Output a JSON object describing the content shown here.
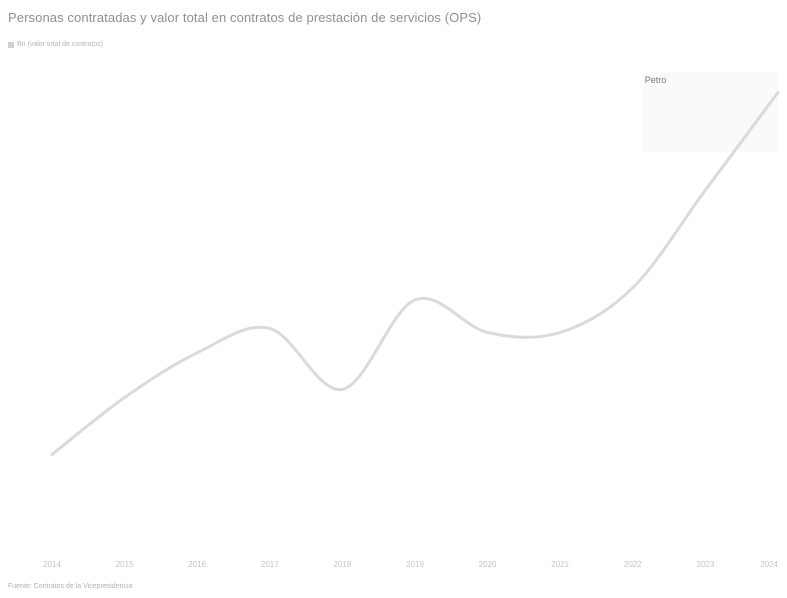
{
  "header": {
    "title": "Personas contratadas y valor total en contratos de prestación de servicios (OPS)",
    "subtitle": "Bn (valor total de contratos)",
    "source": "Fuente: Contratos de la Vicepresidencia"
  },
  "chart_data": {
    "type": "line",
    "title": "Personas contratadas y valor total en contratos de prestación de servicios (OPS)",
    "subtitle": "Bn (valor total de contratos)",
    "x": [
      "2014",
      "2015",
      "2016",
      "2017",
      "2018",
      "2019",
      "2020",
      "2021",
      "2022",
      "2023",
      "2024"
    ],
    "series": [
      {
        "values": [
          2.3,
          3.7,
          4.8,
          5.4,
          3.9,
          6.1,
          5.3,
          5.3,
          6.4,
          8.8,
          11.2
        ]
      }
    ],
    "ylim": [
      0,
      12
    ],
    "grid": false,
    "annotations": [
      {
        "label": "Petro",
        "from": "2022",
        "to": "2024"
      }
    ],
    "colors": {
      "line": "#dadada",
      "period_band": "#fafafa"
    }
  }
}
